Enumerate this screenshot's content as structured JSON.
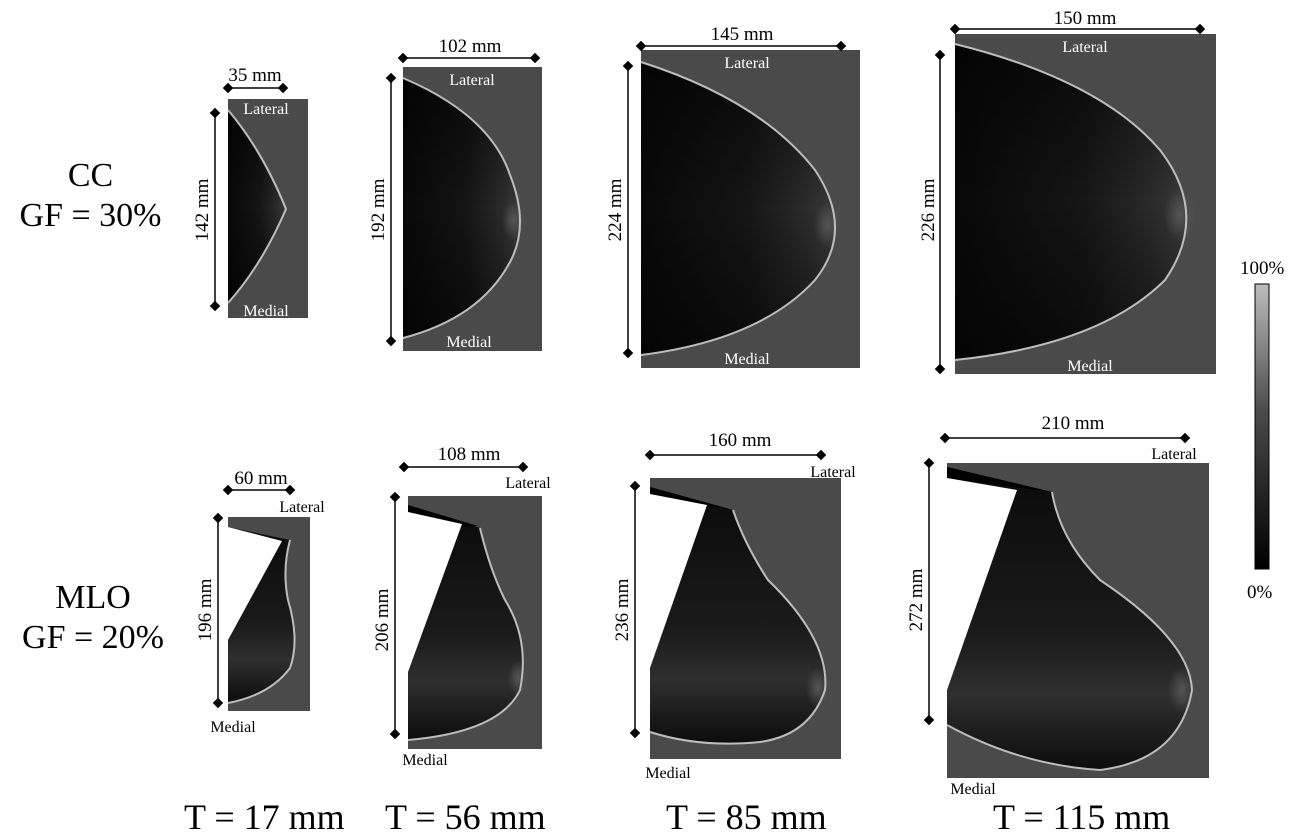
{
  "rows": {
    "cc": {
      "view": "CC",
      "gf": "GF = 30%"
    },
    "mlo": {
      "view": "MLO",
      "gf": "GF = 20%"
    }
  },
  "thickness": [
    "T = 17 mm",
    "T = 56 mm",
    "T = 85 mm",
    "T = 115 mm"
  ],
  "colorbar": {
    "max_label": "100%",
    "min_label": "0%"
  },
  "cc_panels": [
    {
      "width": "35 mm",
      "height": "142 mm",
      "top": "Lateral",
      "bottom": "Medial"
    },
    {
      "width": "102 mm",
      "height": "192 mm",
      "top": "Lateral",
      "bottom": "Medial"
    },
    {
      "width": "145 mm",
      "height": "224 mm",
      "top": "Lateral",
      "bottom": "Medial"
    },
    {
      "width": "150 mm",
      "height": "226 mm",
      "top": "Lateral",
      "bottom": "Medial"
    }
  ],
  "mlo_panels": [
    {
      "width": "60 mm",
      "height": "196 mm",
      "top": "Lateral",
      "bottom": "Medial"
    },
    {
      "width": "108 mm",
      "height": "206 mm",
      "top": "Lateral",
      "bottom": "Medial"
    },
    {
      "width": "160 mm",
      "height": "236 mm",
      "top": "Lateral",
      "bottom": "Medial"
    },
    {
      "width": "210 mm",
      "height": "272 mm",
      "top": "Lateral",
      "bottom": "Medial"
    }
  ],
  "colors": {
    "background_tissue": "#4a4a4a",
    "breast_dark": "#0d0d0d",
    "breast_mid": "#2e2e2e",
    "muscle": "#ffffff",
    "skin_edge": "#bdbdbd"
  }
}
